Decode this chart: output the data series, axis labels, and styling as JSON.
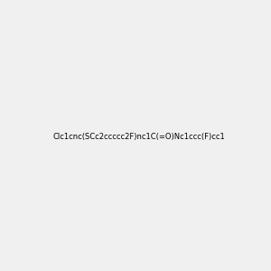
{
  "smiles": "Clc1cnc(SCc2ccccc2F)nc1C(=O)Nc1ccc(F)cc1",
  "title": "",
  "background_color": "#f0f0f0",
  "figsize": [
    3.0,
    3.0
  ],
  "dpi": 100,
  "atom_colors": {
    "N": "#0000ff",
    "O": "#ff0000",
    "F_para": "#ff00ff",
    "F_ortho": "#ff00ff",
    "Cl": "#00cc00",
    "S": "#cccc00",
    "C": "#000000",
    "H": "#555555"
  }
}
